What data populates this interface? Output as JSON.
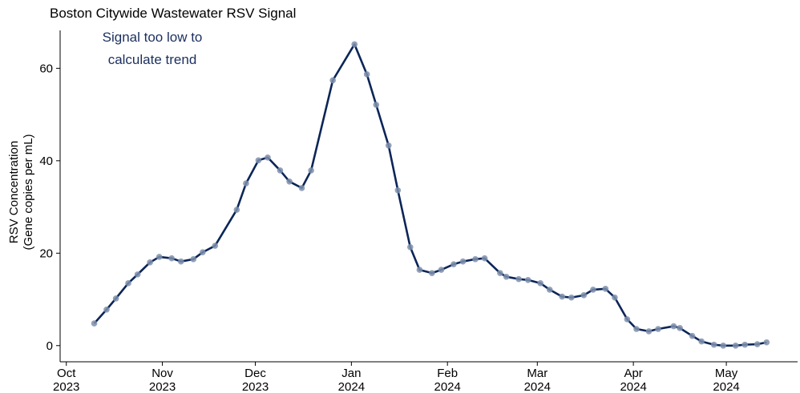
{
  "chart_data": {
    "type": "line",
    "title": "Boston Citywide Wastewater RSV Signal",
    "annotation": [
      "Signal too low to",
      "calculate trend"
    ],
    "y_label": [
      "RSV Concentration",
      "(Gene copies per mL)"
    ],
    "x": [
      "2023-10-10",
      "2023-10-14",
      "2023-10-17",
      "2023-10-21",
      "2023-10-24",
      "2023-10-28",
      "2023-10-31",
      "2023-11-04",
      "2023-11-07",
      "2023-11-11",
      "2023-11-14",
      "2023-11-18",
      "2023-11-25",
      "2023-11-28",
      "2023-12-02",
      "2023-12-05",
      "2023-12-09",
      "2023-12-12",
      "2023-12-16",
      "2023-12-19",
      "2023-12-26",
      "2024-01-02",
      "2024-01-06",
      "2024-01-09",
      "2024-01-13",
      "2024-01-16",
      "2024-01-20",
      "2024-01-23",
      "2024-01-27",
      "2024-01-30",
      "2024-02-03",
      "2024-02-06",
      "2024-02-10",
      "2024-02-13",
      "2024-02-18",
      "2024-02-20",
      "2024-02-24",
      "2024-02-27",
      "2024-03-02",
      "2024-03-05",
      "2024-03-09",
      "2024-03-12",
      "2024-03-16",
      "2024-03-19",
      "2024-03-23",
      "2024-03-26",
      "2024-03-30",
      "2024-04-02",
      "2024-04-06",
      "2024-04-09",
      "2024-04-14",
      "2024-04-16",
      "2024-04-20",
      "2024-04-23",
      "2024-04-27",
      "2024-04-30",
      "2024-05-04",
      "2024-05-07",
      "2024-05-11",
      "2024-05-14"
    ],
    "series": [
      {
        "color": "#0b2558",
        "marker_color": "#7f90ad",
        "values": [
          4.8,
          7.8,
          10.2,
          13.5,
          15.4,
          18,
          19.2,
          18.9,
          18.2,
          18.7,
          20.2,
          21.6,
          29.4,
          35.1,
          40.1,
          40.7,
          37.9,
          35.5,
          34.1,
          37.9,
          57.4,
          65.2,
          58.7,
          52.1,
          43.3,
          33.6,
          21.3,
          16.4,
          15.7,
          16.4,
          17.6,
          18.2,
          18.7,
          18.9,
          15.7,
          14.9,
          14.4,
          14.2,
          13.5,
          12.1,
          10.6,
          10.4,
          10.9,
          12.1,
          12.3,
          10.4,
          5.7,
          3.6,
          3.1,
          3.6,
          4.2,
          3.8,
          2.1,
          0.9,
          0.2,
          0,
          0,
          0.2,
          0.3,
          0.7
        ]
      }
    ],
    "xlim": [
      "2023-09-29",
      "2024-05-24"
    ],
    "xticks": [
      {
        "value": "2023-10-01",
        "label": [
          "Oct",
          "2023"
        ]
      },
      {
        "value": "2023-11-01",
        "label": [
          "Nov",
          "2023"
        ]
      },
      {
        "value": "2023-12-01",
        "label": [
          "Dec",
          "2023"
        ]
      },
      {
        "value": "2024-01-01",
        "label": [
          "Jan",
          "2024"
        ]
      },
      {
        "value": "2024-02-01",
        "label": [
          "Feb",
          "2024"
        ]
      },
      {
        "value": "2024-03-01",
        "label": [
          "Mar",
          "2024"
        ]
      },
      {
        "value": "2024-04-01",
        "label": [
          "Apr",
          "2024"
        ]
      },
      {
        "value": "2024-05-01",
        "label": [
          "May",
          "2024"
        ]
      }
    ],
    "ylim": [
      -3.5,
      68.2
    ],
    "yticks": [
      0,
      20,
      40,
      60
    ]
  }
}
